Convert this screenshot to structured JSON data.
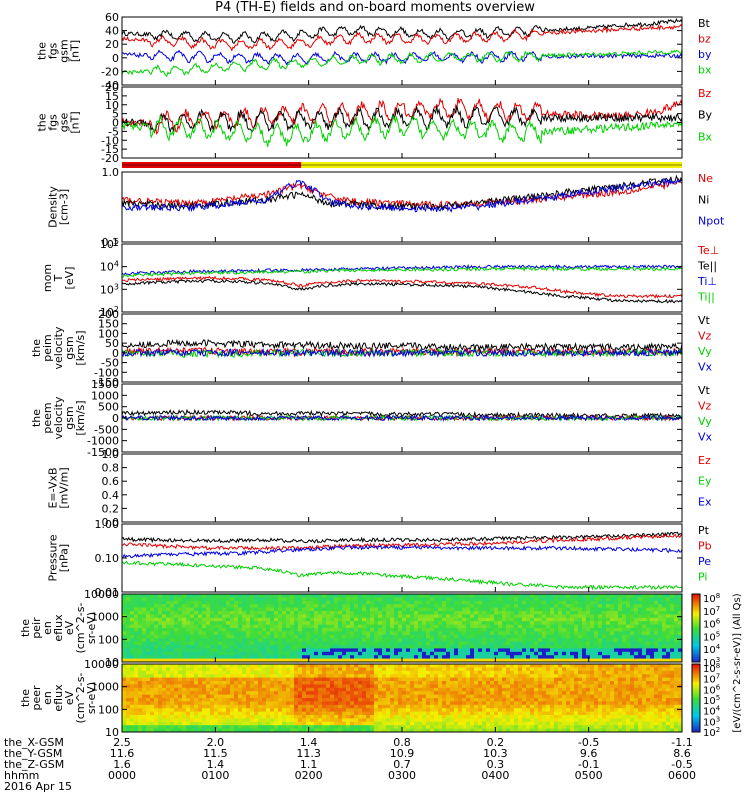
{
  "title": "P4 (TH-E) fields and on-board moments overview",
  "colors": {
    "black": "#000000",
    "red": "#e00000",
    "green": "#00d000",
    "blue": "#0000e0",
    "yellow": "#f2f200",
    "barred": "#e00000"
  },
  "chart_data": [
    {
      "type": "line",
      "id": "fgs-gsm",
      "ylabel": [
        "the",
        "fgs",
        "gsm",
        "[nT]"
      ],
      "yticks": [
        "60",
        "40",
        "20",
        "0",
        "-20",
        "-40"
      ],
      "ylim": [
        -40,
        60
      ],
      "series": [
        {
          "name": "Bt",
          "color": "black",
          "base": [
            36,
            34,
            33,
            31,
            30,
            31,
            34,
            38,
            40,
            38,
            36,
            35,
            36,
            38,
            40,
            42,
            44,
            48,
            50,
            55
          ]
        },
        {
          "name": "bz",
          "color": "red",
          "base": [
            28,
            25,
            23,
            20,
            19,
            20,
            22,
            26,
            29,
            28,
            27,
            28,
            30,
            32,
            35,
            38,
            40,
            42,
            44,
            46
          ]
        },
        {
          "name": "by",
          "color": "blue",
          "base": [
            5,
            3,
            2,
            1,
            0,
            -1,
            -2,
            0,
            0,
            0,
            1,
            1,
            1,
            2,
            2,
            2,
            3,
            3,
            3,
            3
          ]
        },
        {
          "name": "bx",
          "color": "green",
          "base": [
            -22,
            -20,
            -18,
            -15,
            -12,
            -10,
            -8,
            -5,
            -3,
            -2,
            -1,
            0,
            1,
            2,
            3,
            4,
            5,
            6,
            8,
            9
          ]
        }
      ]
    },
    {
      "type": "line",
      "id": "fgs-gse",
      "ylabel": [
        "the",
        "fgs",
        "gse",
        "[nT]"
      ],
      "yticks": [
        "20",
        "15",
        "10",
        "5",
        "0",
        "-5",
        "-10",
        "-15",
        "-20"
      ],
      "ylim": [
        -22,
        22
      ],
      "series": [
        {
          "name": "Bz",
          "color": "red",
          "base": [
            0,
            0,
            1,
            2,
            3,
            4,
            5,
            5,
            6,
            7,
            8,
            8,
            8,
            7,
            6,
            5,
            4,
            4,
            6,
            12
          ]
        },
        {
          "name": "By",
          "color": "black",
          "base": [
            0,
            0,
            0,
            1,
            1,
            1,
            2,
            2,
            2,
            2,
            3,
            3,
            3,
            3,
            3,
            3,
            3,
            3,
            3,
            3
          ]
        },
        {
          "name": "Bx",
          "color": "green",
          "base": [
            -2,
            -3,
            -4,
            -5,
            -6,
            -8,
            -7,
            -5,
            -4,
            -3,
            -3,
            -4,
            -5,
            -6,
            -6,
            -5,
            -4,
            -3,
            -2,
            -1
          ]
        }
      ]
    },
    {
      "type": "line",
      "id": "density",
      "log": true,
      "ylabel": [
        "Density",
        "[cm-3]"
      ],
      "yticks": [
        "1.0",
        "0.1"
      ],
      "ylim": [
        0.1,
        1.2
      ],
      "series": [
        {
          "name": "Ne",
          "color": "red",
          "base": [
            0.45,
            0.42,
            0.4,
            0.42,
            0.48,
            0.55,
            0.75,
            0.5,
            0.42,
            0.4,
            0.38,
            0.38,
            0.4,
            0.42,
            0.45,
            0.5,
            0.55,
            0.6,
            0.7,
            0.85
          ]
        },
        {
          "name": "Ni",
          "color": "black",
          "base": [
            0.4,
            0.38,
            0.36,
            0.38,
            0.42,
            0.45,
            0.55,
            0.4,
            0.38,
            0.35,
            0.35,
            0.36,
            0.4,
            0.45,
            0.5,
            0.58,
            0.65,
            0.75,
            0.85,
            0.95
          ]
        },
        {
          "name": "Npot",
          "color": "blue",
          "base": [
            0.35,
            0.34,
            0.34,
            0.36,
            0.4,
            0.45,
            0.85,
            0.42,
            0.36,
            0.34,
            0.33,
            0.33,
            0.35,
            0.4,
            0.45,
            0.52,
            0.6,
            0.7,
            0.8,
            0.9
          ]
        }
      ]
    },
    {
      "type": "line",
      "id": "temperature",
      "log": true,
      "ylabel": [
        "mom",
        "T",
        "[eV]"
      ],
      "yticks": [
        "10^5",
        "10^4",
        "10^3",
        "10^2"
      ],
      "ylim": [
        100,
        100000
      ],
      "series": [
        {
          "name": "Te⊥",
          "color": "red",
          "base": [
            2500,
            2800,
            3000,
            3200,
            3000,
            2500,
            1500,
            2000,
            2500,
            2300,
            2200,
            2000,
            1800,
            1500,
            1200,
            800,
            600,
            500,
            500,
            500
          ]
        },
        {
          "name": "Te||",
          "color": "black",
          "base": [
            1800,
            2000,
            2200,
            2400,
            2200,
            1800,
            1000,
            1500,
            1800,
            1700,
            1600,
            1500,
            1300,
            1000,
            700,
            500,
            400,
            300,
            300,
            300
          ]
        },
        {
          "name": "Ti⊥",
          "color": "blue",
          "base": [
            5000,
            5500,
            6000,
            6500,
            6500,
            7000,
            7000,
            7500,
            8000,
            8500,
            9000,
            9500,
            10000,
            10000,
            10000,
            10000,
            10000,
            10000,
            10000,
            10000
          ]
        },
        {
          "name": "Ti||",
          "color": "green",
          "base": [
            4000,
            4500,
            5000,
            5500,
            5500,
            6000,
            6000,
            6500,
            7000,
            7000,
            7500,
            7500,
            8000,
            8000,
            8000,
            8000,
            8000,
            8000,
            8000,
            8000
          ]
        }
      ]
    },
    {
      "type": "line",
      "id": "peim-velocity",
      "ylabel": [
        "the",
        "peim",
        "velocity",
        "gsm",
        "[km/s]"
      ],
      "yticks": [
        "200",
        "150",
        "100",
        "50",
        "0",
        "-50",
        "-100",
        "-150"
      ],
      "ylim": [
        -150,
        200
      ],
      "series": [
        {
          "name": "Vt",
          "color": "black",
          "base": [
            40,
            45,
            50,
            50,
            45,
            40,
            40,
            40,
            35,
            35,
            35,
            30,
            30,
            30,
            30,
            30,
            30,
            30,
            30,
            30
          ]
        },
        {
          "name": "Vz",
          "color": "red",
          "base": [
            10,
            10,
            10,
            10,
            5,
            5,
            5,
            5,
            5,
            5,
            5,
            5,
            5,
            5,
            5,
            5,
            5,
            5,
            5,
            5
          ]
        },
        {
          "name": "Vy",
          "color": "green",
          "base": [
            0,
            0,
            -5,
            -5,
            -5,
            0,
            0,
            0,
            0,
            0,
            0,
            0,
            0,
            0,
            0,
            0,
            0,
            0,
            0,
            0
          ]
        },
        {
          "name": "Vx",
          "color": "blue",
          "base": [
            0,
            0,
            0,
            0,
            0,
            0,
            0,
            0,
            0,
            0,
            0,
            0,
            0,
            0,
            0,
            0,
            0,
            0,
            0,
            0
          ]
        }
      ]
    },
    {
      "type": "line",
      "id": "peem-velocity",
      "ylabel": [
        "the",
        "peem",
        "velocity",
        "gsm",
        "[km/s]"
      ],
      "yticks": [
        "1500",
        "1000",
        "500",
        "0",
        "-500",
        "-1000",
        "-1500"
      ],
      "ylim": [
        -1500,
        1500
      ],
      "series": [
        {
          "name": "Vt",
          "color": "black",
          "base": [
            200,
            220,
            250,
            240,
            220,
            200,
            200,
            190,
            180,
            170,
            160,
            150,
            140,
            130,
            120,
            110,
            100,
            100,
            100,
            100
          ]
        },
        {
          "name": "Vz",
          "color": "red",
          "base": [
            0,
            0,
            0,
            0,
            0,
            0,
            0,
            0,
            0,
            0,
            0,
            0,
            0,
            0,
            0,
            0,
            0,
            0,
            0,
            0
          ]
        },
        {
          "name": "Vy",
          "color": "green",
          "base": [
            0,
            0,
            0,
            0,
            0,
            0,
            0,
            0,
            0,
            0,
            0,
            0,
            0,
            0,
            0,
            0,
            0,
            0,
            0,
            0
          ]
        },
        {
          "name": "Vx",
          "color": "blue",
          "base": [
            0,
            0,
            0,
            0,
            0,
            0,
            0,
            0,
            0,
            0,
            0,
            0,
            0,
            0,
            0,
            0,
            0,
            0,
            0,
            0
          ]
        }
      ]
    },
    {
      "type": "line",
      "id": "e-field",
      "ylabel": [
        "E=-VxB",
        "[mV/m]"
      ],
      "yticks": [
        "1.0",
        "0.8",
        "0.6",
        "0.4",
        "0.2",
        "0.0"
      ],
      "ylim": [
        0,
        1
      ],
      "series": [
        {
          "name": "Ez",
          "color": "red",
          "base": []
        },
        {
          "name": "Ey",
          "color": "green",
          "base": []
        },
        {
          "name": "Ex",
          "color": "blue",
          "base": []
        }
      ]
    },
    {
      "type": "line",
      "id": "pressure",
      "log": true,
      "ylabel": [
        "Pressure",
        "[nPa]"
      ],
      "yticks": [
        "1.00",
        "0.10",
        "0.01"
      ],
      "ylim": [
        0.01,
        3
      ],
      "series": [
        {
          "name": "Pt",
          "color": "black",
          "base": [
            0.85,
            0.8,
            0.75,
            0.75,
            0.75,
            0.8,
            0.7,
            0.75,
            0.8,
            0.8,
            0.8,
            0.8,
            0.85,
            0.9,
            0.95,
            1.0,
            1.05,
            1.1,
            1.2,
            1.35
          ]
        },
        {
          "name": "Pb",
          "color": "red",
          "base": [
            0.55,
            0.5,
            0.45,
            0.4,
            0.4,
            0.4,
            0.4,
            0.45,
            0.5,
            0.5,
            0.52,
            0.55,
            0.58,
            0.62,
            0.7,
            0.8,
            0.85,
            0.95,
            1.05,
            1.15
          ]
        },
        {
          "name": "Pe",
          "color": "blue",
          "base": [
            0.2,
            0.22,
            0.24,
            0.25,
            0.26,
            0.3,
            0.35,
            0.4,
            0.42,
            0.42,
            0.42,
            0.4,
            0.4,
            0.4,
            0.4,
            0.4,
            0.38,
            0.36,
            0.34,
            0.32
          ]
        },
        {
          "name": "Pi",
          "color": "green",
          "base": [
            0.12,
            0.11,
            0.1,
            0.09,
            0.08,
            0.07,
            0.04,
            0.05,
            0.05,
            0.04,
            0.035,
            0.03,
            0.025,
            0.02,
            0.018,
            0.015,
            0.015,
            0.015,
            0.015,
            0.015
          ]
        }
      ]
    },
    {
      "type": "heatmap",
      "id": "peir-en-eflux",
      "ylabel": [
        "the",
        "peir",
        "en",
        "eflux",
        "eV",
        "(cm^2-s-",
        "sr-eV)"
      ],
      "yticks": [
        "10000",
        "1000",
        "100",
        "10"
      ]
    },
    {
      "type": "heatmap",
      "id": "peer-en-eflux",
      "ylabel": [
        "the",
        "peer",
        "en",
        "eflux",
        "eV",
        "(cm^2-s-",
        "sr-eV)"
      ],
      "yticks": [
        "10000",
        "1000",
        "100",
        "10"
      ]
    }
  ],
  "colorbar": {
    "label": "[eV/(cm^2-s-sr-eV)] (All Qs)",
    "ticks_top": [
      "10^8",
      "10^7",
      "10^6",
      "10^5",
      "10^4",
      "10^3"
    ],
    "ticks_bottom": [
      "10^8",
      "10^7",
      "10^6",
      "10^5",
      "10^4",
      "10^3",
      "10^2"
    ]
  },
  "x_axis": {
    "rows": [
      {
        "label": "the_X-GSM",
        "values": [
          "2.5",
          "2.0",
          "1.4",
          "0.8",
          "0.2",
          "-0.5",
          "-1.1"
        ]
      },
      {
        "label": "the_Y-GSM",
        "values": [
          "11.6",
          "11.5",
          "11.3",
          "10.9",
          "10.3",
          "9.6",
          "8.6"
        ]
      },
      {
        "label": "the_Z-GSM",
        "values": [
          "1.6",
          "1.4",
          "1.1",
          "0.7",
          "0.3",
          "-0.1",
          "-0.5"
        ]
      },
      {
        "label": "hhmm",
        "values": [
          "0000",
          "0100",
          "0200",
          "0300",
          "0400",
          "0500",
          "0600"
        ]
      }
    ],
    "date": "2016 Apr 15"
  }
}
